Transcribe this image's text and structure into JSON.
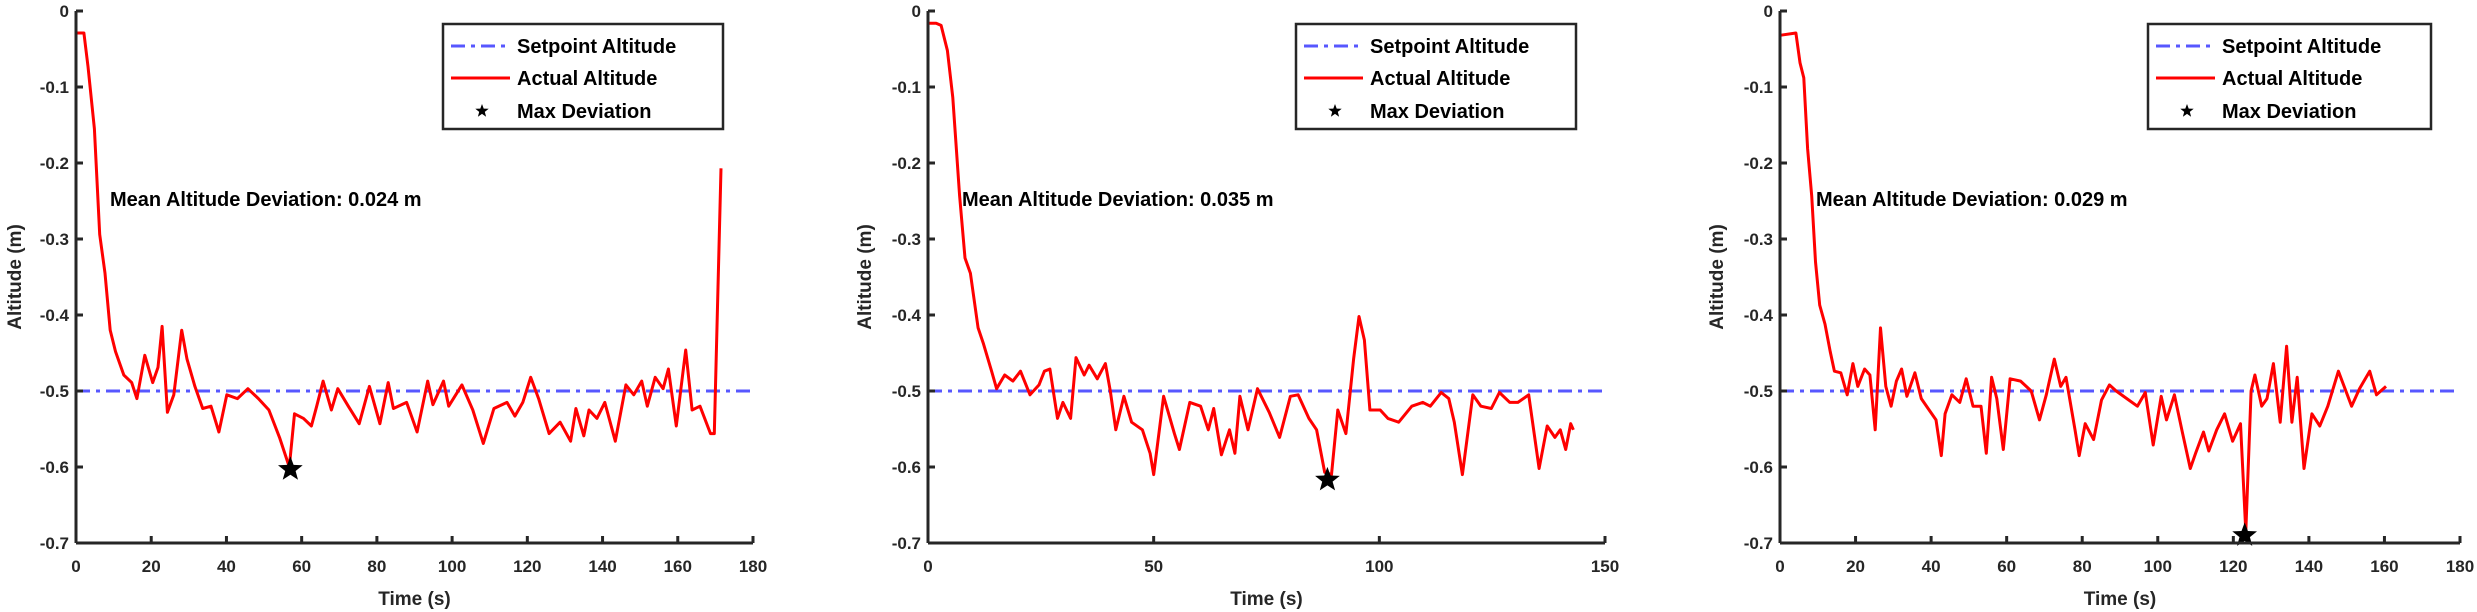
{
  "chart_data": [
    {
      "type": "line",
      "xlabel": "Time (s)",
      "ylabel": "Altitude (m)",
      "xlim": [
        0,
        180
      ],
      "ylim": [
        -0.7,
        0
      ],
      "xticks": [
        0,
        20,
        40,
        60,
        80,
        100,
        120,
        140,
        160,
        180
      ],
      "yticks": [
        0,
        -0.1,
        -0.2,
        -0.3,
        -0.4,
        -0.5,
        -0.6,
        -0.7
      ],
      "grid": false,
      "legend_position": "top-right",
      "annotation": "Mean Altitude Deviation: 0.024 m",
      "series": [
        {
          "name": "Setpoint Altitude",
          "style": "dash-dot",
          "color": "#3a3aff",
          "x": [
            0,
            180
          ],
          "y": [
            -0.5,
            -0.5
          ]
        },
        {
          "name": "Actual Altitude",
          "style": "solid",
          "color": "#ff0000",
          "x": [
            0,
            2.1,
            3.2,
            4.9,
            6.3,
            7.7,
            9.1,
            10.5,
            12.7,
            14.8,
            16.2,
            18.3,
            20.4,
            21.8,
            22.9,
            24.3,
            26,
            28.1,
            29.5,
            31.6,
            33.7,
            35.9,
            38,
            40.1,
            42.9,
            45.7,
            48.5,
            51.3,
            54.1,
            56.7,
            58.1,
            60.5,
            62.6,
            64,
            65.7,
            67.9,
            69.6,
            72.4,
            75.3,
            78,
            80.8,
            83,
            84.4,
            87.9,
            90.7,
            93.5,
            94.9,
            97.7,
            99.1,
            102.6,
            105.5,
            108.3,
            111.1,
            114.6,
            116.7,
            118.8,
            120.9,
            123,
            125.8,
            128.7,
            131.5,
            132.9,
            135,
            136.4,
            138.5,
            140.6,
            143.4,
            146.2,
            148.3,
            150.4,
            151.9,
            154,
            156.1,
            157.5,
            159.6,
            162.1,
            163.8,
            165.9,
            168.7,
            169.7,
            171.5
          ],
          "y": [
            -0.029,
            -0.029,
            -0.073,
            -0.155,
            -0.294,
            -0.345,
            -0.42,
            -0.448,
            -0.479,
            -0.489,
            -0.51,
            -0.453,
            -0.489,
            -0.469,
            -0.415,
            -0.528,
            -0.505,
            -0.42,
            -0.458,
            -0.494,
            -0.523,
            -0.52,
            -0.554,
            -0.505,
            -0.51,
            -0.497,
            -0.51,
            -0.525,
            -0.561,
            -0.6,
            -0.53,
            -0.536,
            -0.546,
            -0.52,
            -0.487,
            -0.525,
            -0.497,
            -0.52,
            -0.543,
            -0.494,
            -0.543,
            -0.489,
            -0.523,
            -0.515,
            -0.554,
            -0.487,
            -0.518,
            -0.487,
            -0.52,
            -0.492,
            -0.525,
            -0.569,
            -0.523,
            -0.515,
            -0.533,
            -0.515,
            -0.482,
            -0.51,
            -0.556,
            -0.541,
            -0.566,
            -0.523,
            -0.559,
            -0.525,
            -0.536,
            -0.515,
            -0.566,
            -0.492,
            -0.505,
            -0.487,
            -0.52,
            -0.482,
            -0.497,
            -0.471,
            -0.546,
            -0.446,
            -0.525,
            -0.52,
            -0.556,
            -0.556,
            -0.207
          ]
        },
        {
          "name": "Max Deviation",
          "style": "star",
          "color": "#000000",
          "x": [
            57
          ],
          "y": [
            -0.603
          ]
        }
      ]
    },
    {
      "type": "line",
      "xlabel": "Time (s)",
      "ylabel": "Altitude (m)",
      "xlim": [
        0,
        150
      ],
      "ylim": [
        -0.7,
        0
      ],
      "xticks": [
        0,
        50,
        100,
        150
      ],
      "yticks": [
        0,
        -0.1,
        -0.2,
        -0.3,
        -0.4,
        -0.5,
        -0.6,
        -0.7
      ],
      "grid": false,
      "legend_position": "top-right",
      "annotation": "Mean Altitude Deviation: 0.035 m",
      "series": [
        {
          "name": "Setpoint Altitude",
          "style": "dash-dot",
          "color": "#3a3aff",
          "x": [
            0,
            150
          ],
          "y": [
            -0.5,
            -0.5
          ]
        },
        {
          "name": "Actual Altitude",
          "style": "solid",
          "color": "#ff0000",
          "x": [
            0,
            1.8,
            2.9,
            4.3,
            5.5,
            7,
            8.2,
            9.4,
            11.1,
            12.3,
            14.1,
            15.2,
            17,
            18.8,
            20.5,
            22.6,
            24.6,
            25.8,
            27,
            28.7,
            29.9,
            31.6,
            32.8,
            34.6,
            35.7,
            37.5,
            39.3,
            40.4,
            41.6,
            43.4,
            45.1,
            47.5,
            49.2,
            50,
            52.2,
            54.6,
            55.7,
            58,
            60.4,
            62.1,
            63.3,
            65,
            66.8,
            68,
            69.1,
            70.9,
            73,
            75.6,
            77.9,
            80.3,
            82,
            84.4,
            86.1,
            87.9,
            89.4,
            90.8,
            92.6,
            94.3,
            95.5,
            96.7,
            97.9,
            100.2,
            101.9,
            104.3,
            107.2,
            109.6,
            111.3,
            113.7,
            115.4,
            116.6,
            118.4,
            120.7,
            122.5,
            124.8,
            126.6,
            128.9,
            130.7,
            133.1,
            135.4,
            137.2,
            138.9,
            140.1,
            141.3,
            142.4,
            143
          ],
          "y": [
            -0.016,
            -0.016,
            -0.019,
            -0.052,
            -0.114,
            -0.243,
            -0.325,
            -0.345,
            -0.417,
            -0.438,
            -0.474,
            -0.497,
            -0.479,
            -0.487,
            -0.474,
            -0.505,
            -0.492,
            -0.474,
            -0.471,
            -0.536,
            -0.515,
            -0.536,
            -0.456,
            -0.479,
            -0.466,
            -0.484,
            -0.464,
            -0.5,
            -0.551,
            -0.507,
            -0.541,
            -0.551,
            -0.582,
            -0.61,
            -0.507,
            -0.556,
            -0.577,
            -0.515,
            -0.52,
            -0.551,
            -0.523,
            -0.584,
            -0.551,
            -0.582,
            -0.507,
            -0.551,
            -0.497,
            -0.528,
            -0.561,
            -0.507,
            -0.505,
            -0.536,
            -0.551,
            -0.607,
            -0.61,
            -0.525,
            -0.556,
            -0.458,
            -0.402,
            -0.433,
            -0.525,
            -0.525,
            -0.536,
            -0.541,
            -0.52,
            -0.515,
            -0.52,
            -0.502,
            -0.51,
            -0.541,
            -0.61,
            -0.505,
            -0.52,
            -0.523,
            -0.502,
            -0.515,
            -0.515,
            -0.505,
            -0.602,
            -0.546,
            -0.561,
            -0.551,
            -0.577,
            -0.543,
            -0.551
          ]
        },
        {
          "name": "Max Deviation",
          "style": "star",
          "color": "#000000",
          "x": [
            88.5
          ],
          "y": [
            -0.617
          ]
        }
      ]
    },
    {
      "type": "line",
      "xlabel": "Time (s)",
      "ylabel": "Altitude (m)",
      "xlim": [
        0,
        180
      ],
      "ylim": [
        -0.7,
        0
      ],
      "xticks": [
        0,
        20,
        40,
        60,
        80,
        100,
        120,
        140,
        160,
        180
      ],
      "yticks": [
        0,
        -0.1,
        -0.2,
        -0.3,
        -0.4,
        -0.5,
        -0.6,
        -0.7
      ],
      "grid": false,
      "legend_position": "top-right",
      "annotation": "Mean Altitude Deviation: 0.029 m",
      "series": [
        {
          "name": "Setpoint Altitude",
          "style": "dash-dot",
          "color": "#3a3aff",
          "x": [
            0,
            180
          ],
          "y": [
            -0.5,
            -0.5
          ]
        },
        {
          "name": "Actual Altitude",
          "style": "solid",
          "color": "#ff0000",
          "x": [
            0,
            4.2,
            5.3,
            6.3,
            7.3,
            8.4,
            9.4,
            10.5,
            11.9,
            13.3,
            14.4,
            16.1,
            17.8,
            19.3,
            20.6,
            22.4,
            23.8,
            25.2,
            26.6,
            28,
            29.4,
            30.8,
            32.2,
            33.6,
            35.7,
            37.4,
            39.2,
            41.3,
            42.7,
            43.7,
            45.5,
            47.6,
            49.3,
            51.1,
            53.2,
            54.6,
            56,
            57.4,
            59.1,
            60.9,
            63.7,
            66.5,
            68.7,
            70.5,
            72.6,
            74.3,
            75.7,
            78.1,
            79.2,
            80.8,
            83,
            85.1,
            87.2,
            89,
            91.8,
            94.6,
            96.7,
            98.8,
            100.9,
            102.3,
            104.4,
            106.5,
            108.6,
            110,
            112.1,
            113.5,
            115.6,
            117.7,
            119.8,
            121.9,
            123.3,
            124.7,
            125.7,
            127.5,
            128.9,
            130.6,
            132.4,
            134.1,
            135.5,
            136.9,
            138.7,
            140.8,
            142.9,
            145,
            147.8,
            151.3,
            153.4,
            156.1,
            157.9,
            160.4
          ],
          "y": [
            -0.032,
            -0.029,
            -0.068,
            -0.088,
            -0.181,
            -0.243,
            -0.33,
            -0.387,
            -0.412,
            -0.448,
            -0.474,
            -0.476,
            -0.505,
            -0.464,
            -0.494,
            -0.471,
            -0.479,
            -0.551,
            -0.417,
            -0.494,
            -0.52,
            -0.487,
            -0.471,
            -0.507,
            -0.476,
            -0.51,
            -0.523,
            -0.538,
            -0.585,
            -0.53,
            -0.505,
            -0.515,
            -0.484,
            -0.52,
            -0.52,
            -0.582,
            -0.482,
            -0.51,
            -0.577,
            -0.484,
            -0.487,
            -0.5,
            -0.538,
            -0.505,
            -0.458,
            -0.494,
            -0.482,
            -0.551,
            -0.585,
            -0.543,
            -0.564,
            -0.512,
            -0.492,
            -0.5,
            -0.51,
            -0.52,
            -0.502,
            -0.571,
            -0.507,
            -0.538,
            -0.505,
            -0.554,
            -0.602,
            -0.582,
            -0.554,
            -0.579,
            -0.551,
            -0.53,
            -0.566,
            -0.543,
            -0.685,
            -0.5,
            -0.479,
            -0.52,
            -0.51,
            -0.464,
            -0.541,
            -0.441,
            -0.541,
            -0.482,
            -0.602,
            -0.53,
            -0.546,
            -0.52,
            -0.474,
            -0.52,
            -0.497,
            -0.474,
            -0.505,
            -0.494
          ]
        },
        {
          "name": "Max Deviation",
          "style": "star",
          "color": "#000000",
          "x": [
            123
          ],
          "y": [
            -0.69
          ]
        }
      ]
    }
  ]
}
